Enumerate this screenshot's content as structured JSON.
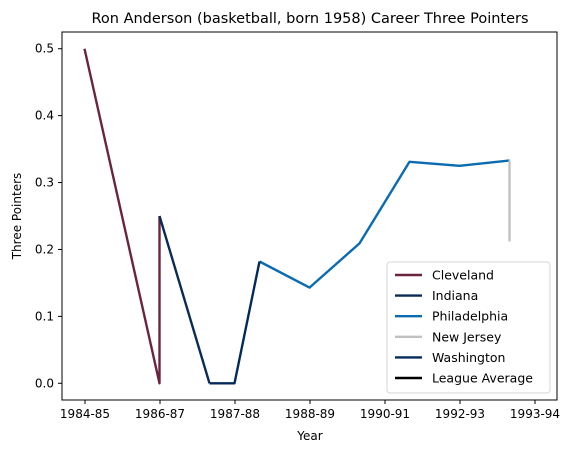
{
  "chart_data": {
    "type": "line",
    "title": "Ron Anderson (basketball, born 1958) Career Three Pointers",
    "xlabel": "Year",
    "ylabel": "Three Pointers",
    "x_ticks": [
      "1984-85",
      "1986-87",
      "1987-88",
      "1988-89",
      "1990-91",
      "1992-93",
      "1993-94"
    ],
    "y_ticks": [
      "0.0",
      "0.1",
      "0.2",
      "0.3",
      "0.4",
      "0.5"
    ],
    "xlim": [
      1984.85,
      1994.25
    ],
    "ylim": [
      -0.025,
      0.525
    ],
    "grid": false,
    "legend_position": "bottom-right",
    "series": [
      {
        "name": "Cleveland",
        "color": "#6b2440",
        "points": [
          [
            1984.5,
            0.5
          ],
          [
            1986.0,
            0.0
          ],
          [
            1986.0,
            0.25
          ]
        ]
      },
      {
        "name": "Indiana",
        "color": "#0b2b57",
        "points": [
          [
            1986.0,
            0.25
          ],
          [
            1987.0,
            0.0
          ]
        ]
      },
      {
        "name": "Philadelphia",
        "color": "#0a6bb0",
        "points": [
          [
            1988.0,
            0.182
          ],
          [
            1989.0,
            0.143
          ],
          [
            1990.0,
            0.209
          ],
          [
            1991.0,
            0.331
          ],
          [
            1992.0,
            0.325
          ],
          [
            1993.0,
            0.333
          ]
        ]
      },
      {
        "name": "New Jersey",
        "color": "#c1c1c1",
        "points": [
          [
            1993.0,
            0.333
          ],
          [
            1993.0,
            0.212
          ]
        ]
      },
      {
        "name": "Washington",
        "color": "#042a5c",
        "points": [
          [
            1987.0,
            0.0
          ],
          [
            1987.5,
            0.0
          ],
          [
            1988.0,
            0.182
          ]
        ]
      },
      {
        "name": "League Average",
        "color": "#000000",
        "points": []
      }
    ]
  }
}
